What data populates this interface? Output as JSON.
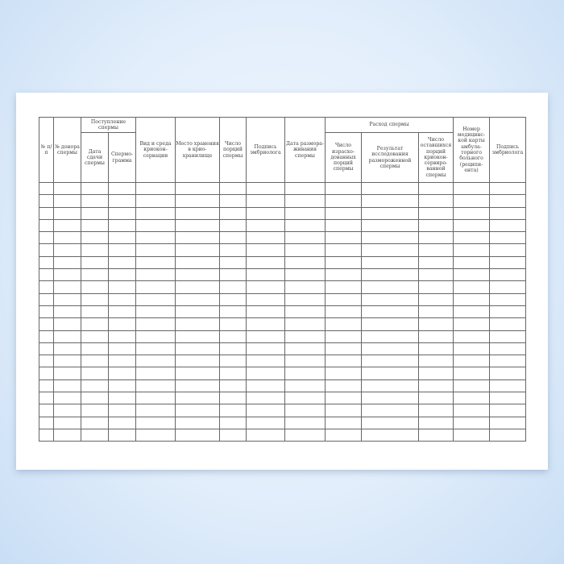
{
  "journal": {
    "headers": {
      "num": "№ п/п",
      "donor": "№ донора спермы",
      "receipt": "Поступление спермы",
      "receipt_date": "Дата сдачи спермы",
      "spermogram": "Спермо-грамма",
      "type_medium": "Вид и среда криокон-сервации",
      "storage_place": "Место хранения в крио-хранилище",
      "portions": "Число порций спермы",
      "signature1": "Подпись эмбриолога",
      "thaw_date": "Дата размора-живания спермы",
      "consumption": "Расход спермы",
      "used_portions": "Число израсхо-дованных порций спермы",
      "thaw_result": "Результат исследования размороженной спермы",
      "remaining": "Число оставшихся порций криокон-сервиро-ванной спермы",
      "card_number": "Номер медицинс-кой карты амбула-торного больного (реципи-ента)",
      "signature2": "Подпись эмбриолога"
    },
    "empty_rows": 21
  }
}
